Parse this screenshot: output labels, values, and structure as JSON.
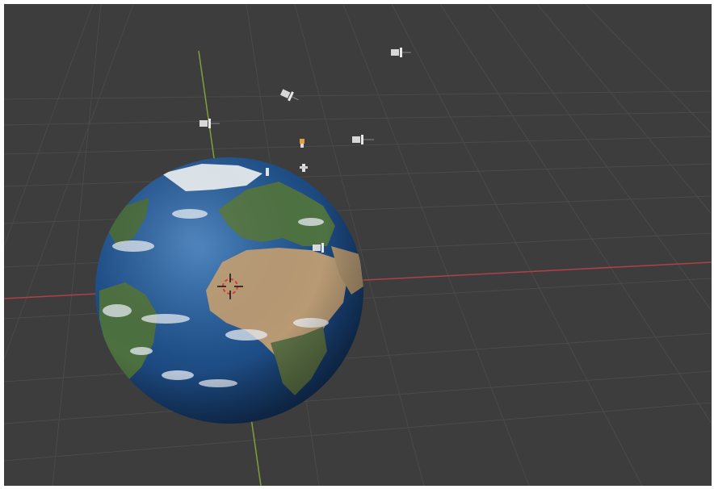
{
  "viewport": {
    "mode": "3d-viewport",
    "background": "#3d3d3d",
    "grid_color": "#4a4a4a",
    "x_axis_color": "#b04048",
    "y_axis_color": "#7fa03a"
  },
  "scene": {
    "globe": {
      "name": "earth",
      "textured": true
    },
    "satellites_count": 7,
    "cursor": "3d-cursor-icon"
  },
  "colors": {
    "ocean": "#1f4f88",
    "ocean_dark": "#143a6a",
    "land_green": "#4d7040",
    "land_desert": "#b89a74",
    "cloud": "#e8eef4"
  }
}
